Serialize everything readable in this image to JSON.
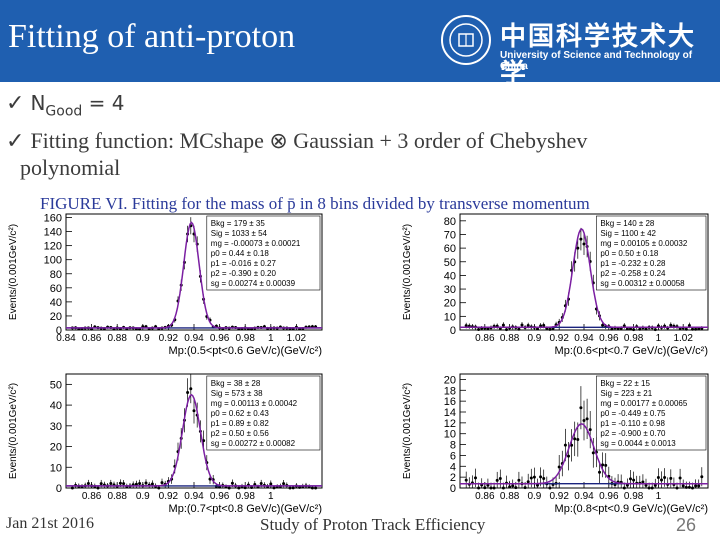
{
  "slide": {
    "title": "Fitting of anti-proton",
    "logo_cn": "中国科学技术大学",
    "logo_en": "University of Science and Technology of China",
    "bullet1_prefix": "N",
    "bullet1_sub": "Good",
    "bullet1_rest": " = 4",
    "bullet2_line1": "Fitting function: MCshape ⊗ Gaussian + 3 order of Chebyshev",
    "bullet2_line2": "polynomial",
    "caption": "FIGURE VI. Fitting for the mass of p̄ in 8 bins divided by transverse momentum",
    "footer_date": "Jan 21st 2016",
    "footer_title": "Study of Proton Track Efficiency",
    "page_number": "26"
  },
  "colors": {
    "header_bg": "#1f5fb0",
    "fit_curve": "#7b1fa2",
    "background_fit": "#1a237e",
    "data_points": "#000000",
    "caption": "#2a3a9a"
  },
  "chart_data": [
    {
      "type": "scatter",
      "ylabel": "Events/(0.001GeV/c²)",
      "xlabel": "Mp:(0.5<pt<0.6 GeV/c)(GeV/c²)",
      "xticks": [
        "0.84",
        "0.86",
        "0.88",
        "0.9",
        "0.92",
        "0.94",
        "0.96",
        "0.98",
        "1",
        "1.02"
      ],
      "yticks": [
        "0",
        "20",
        "40",
        "60",
        "80",
        "100",
        "120",
        "140",
        "160"
      ],
      "ylim": [
        0,
        165
      ],
      "stats": [
        "Bkg = 179 ± 35",
        "Sig = 1033 ± 54",
        "mg = -0.00073 ± 0.00021",
        "p0 = 0.44 ± 0.18",
        "p1 = -0.016 ± 0.27",
        "p2 = -0.390 ± 0.20",
        "sg = 0.00274 ± 0.00039"
      ],
      "peak_x": 0.938,
      "peak_y": 150,
      "width": 0.006,
      "bkg": 3
    },
    {
      "type": "scatter",
      "ylabel": "Events/(0.001GeV/c²)",
      "xlabel": "Mp:(0.6<pt<0.7 GeV/c)(GeV/c²)",
      "xticks": [
        "0.86",
        "0.88",
        "0.9",
        "0.92",
        "0.94",
        "0.96",
        "0.98",
        "1",
        "1.02"
      ],
      "yticks": [
        "0",
        "10",
        "20",
        "30",
        "40",
        "50",
        "60",
        "70",
        "80"
      ],
      "ylim": [
        0,
        85
      ],
      "stats": [
        "Bkg = 140 ± 28",
        "Sig = 1100 ± 42",
        "mg = 0.00105 ± 0.00032",
        "p0 = 0.50 ± 0.18",
        "p1 = -0.232 ± 0.28",
        "p2 = -0.258 ± 0.24",
        "sg = 0.00312 ± 0.00058"
      ],
      "peak_x": 0.938,
      "peak_y": 72,
      "width": 0.007,
      "bkg": 2
    },
    {
      "type": "scatter",
      "ylabel": "Events/(0.001GeV/c²)",
      "xlabel": "Mp:(0.7<pt<0.8 GeV/c)(GeV/c²)",
      "xticks": [
        "0.86",
        "0.88",
        "0.9",
        "0.92",
        "0.94",
        "0.96",
        "0.98",
        "1"
      ],
      "yticks": [
        "0",
        "10",
        "20",
        "30",
        "40",
        "50"
      ],
      "ylim": [
        0,
        55
      ],
      "stats": [
        "Bkg = 38 ± 28",
        "Sig = 573 ± 38",
        "mg = 0.00113 ± 0.00042",
        "p0 = 0.62 ± 0.43",
        "p1 = 0.89 ± 0.82",
        "p2 = 0.50 ± 0.56",
        "sg = 0.00272 ± 0.00082"
      ],
      "peak_x": 0.938,
      "peak_y": 44,
      "width": 0.007,
      "bkg": 1
    },
    {
      "type": "scatter",
      "ylabel": "Events/(0.001GeV/c²)",
      "xlabel": "Mp:(0.8<pt<0.9 GeV/c)(GeV/c²)",
      "xticks": [
        "0.86",
        "0.88",
        "0.9",
        "0.92",
        "0.94",
        "0.96",
        "0.98",
        "1"
      ],
      "yticks": [
        "0",
        "2",
        "4",
        "6",
        "8",
        "10",
        "12",
        "14",
        "16",
        "18",
        "20"
      ],
      "ylim": [
        0,
        21
      ],
      "stats": [
        "Bkg = 22 ± 15",
        "Sig = 223 ± 21",
        "mg = 0.00177 ± 0.00065",
        "p0 = -0.449 ± 0.75",
        "p1 = -0.110 ± 0.98",
        "p2 = -0.900 ± 0.70",
        "sg = 0.0044 ± 0.0013"
      ],
      "peak_x": 0.938,
      "peak_y": 11,
      "width": 0.01,
      "bkg": 0.8
    }
  ]
}
